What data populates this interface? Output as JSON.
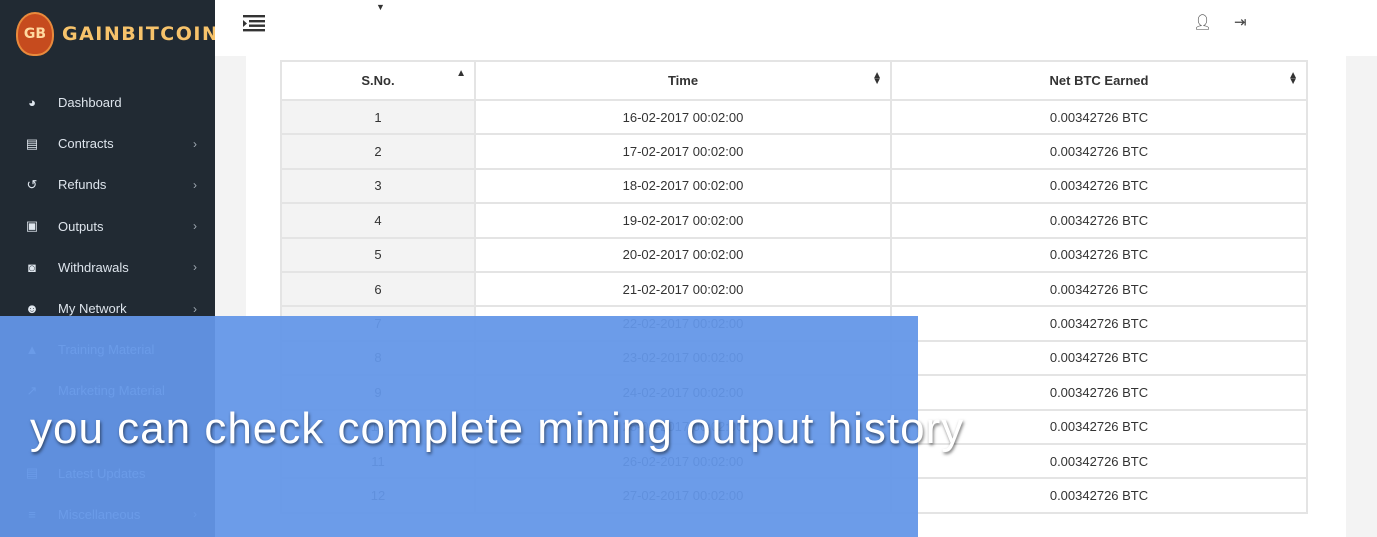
{
  "brand": {
    "name": "GAINBITCOIN",
    "badge": "GB"
  },
  "sidebar": {
    "items": [
      {
        "label": "Dashboard",
        "icon": "dashboard-icon",
        "glyph": "◕",
        "has_chevron": false
      },
      {
        "label": "Contracts",
        "icon": "contract-icon",
        "glyph": "▤",
        "has_chevron": true
      },
      {
        "label": "Refunds",
        "icon": "history-icon",
        "glyph": "↺",
        "has_chevron": true
      },
      {
        "label": "Outputs",
        "icon": "briefcase-icon",
        "glyph": "▣",
        "has_chevron": true
      },
      {
        "label": "Withdrawals",
        "icon": "money-icon",
        "glyph": "◙",
        "has_chevron": true
      },
      {
        "label": "My Network",
        "icon": "users-icon",
        "glyph": "☻",
        "has_chevron": true
      },
      {
        "label": "Training Material",
        "icon": "graduation-cap-icon",
        "glyph": "▲",
        "has_chevron": false
      },
      {
        "label": "Marketing Material",
        "icon": "line-chart-icon",
        "glyph": "↗",
        "has_chevron": false
      },
      {
        "label": "",
        "icon": "hidden-icon",
        "glyph": "",
        "has_chevron": false
      },
      {
        "label": "Latest Updates",
        "icon": "newspaper-icon",
        "glyph": "▤",
        "has_chevron": false
      },
      {
        "label": "Miscellaneous",
        "icon": "list-icon",
        "glyph": "≡",
        "has_chevron": true
      }
    ]
  },
  "table": {
    "headers": [
      "S.No.",
      "Time",
      "Net BTC Earned"
    ],
    "rows": [
      {
        "sno": "1",
        "time": "16-02-2017 00:02:00",
        "btc": "0.00342726 BTC"
      },
      {
        "sno": "2",
        "time": "17-02-2017 00:02:00",
        "btc": "0.00342726 BTC"
      },
      {
        "sno": "3",
        "time": "18-02-2017 00:02:00",
        "btc": "0.00342726 BTC"
      },
      {
        "sno": "4",
        "time": "19-02-2017 00:02:00",
        "btc": "0.00342726 BTC"
      },
      {
        "sno": "5",
        "time": "20-02-2017 00:02:00",
        "btc": "0.00342726 BTC"
      },
      {
        "sno": "6",
        "time": "21-02-2017 00:02:00",
        "btc": "0.00342726 BTC"
      },
      {
        "sno": "7",
        "time": "22-02-2017 00:02:00",
        "btc": "0.00342726 BTC"
      },
      {
        "sno": "8",
        "time": "23-02-2017 00:02:00",
        "btc": "0.00342726 BTC"
      },
      {
        "sno": "9",
        "time": "24-02-2017 00:02:00",
        "btc": "0.00342726 BTC"
      },
      {
        "sno": "10",
        "time": "25-02-2017 00:02:00",
        "btc": "0.00342726 BTC"
      },
      {
        "sno": "11",
        "time": "26-02-2017 00:02:00",
        "btc": "0.00342726 BTC"
      },
      {
        "sno": "12",
        "time": "27-02-2017 00:02:00",
        "btc": "0.00342726 BTC"
      }
    ]
  },
  "overlay": {
    "caption": "you can check complete mining output history"
  },
  "colors": {
    "sidebar": "#212a33",
    "overlay": "#6396e8",
    "accent": "#f7c36b"
  }
}
